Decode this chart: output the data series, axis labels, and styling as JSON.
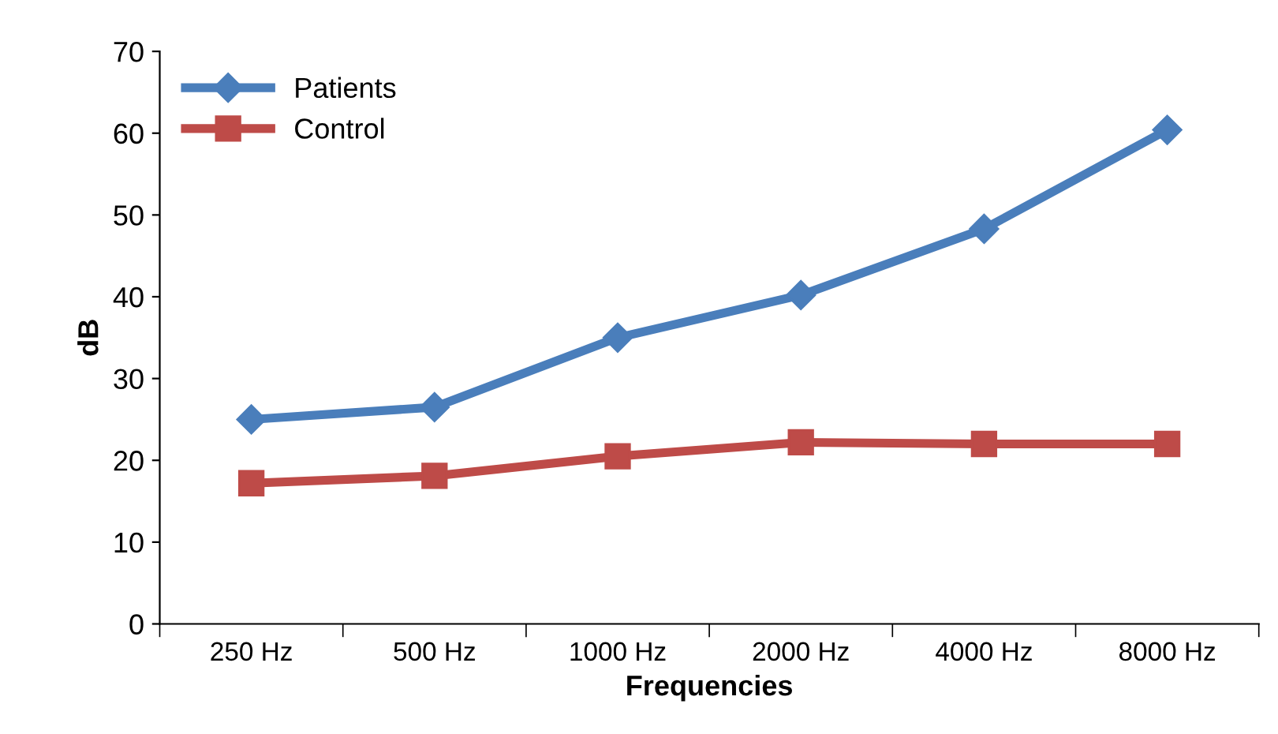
{
  "chart_data": {
    "type": "line",
    "xlabel": "Frequencies",
    "ylabel": "dB",
    "categories": [
      "250 Hz",
      "500 Hz",
      "1000 Hz",
      "2000 Hz",
      "4000 Hz",
      "8000 Hz"
    ],
    "series": [
      {
        "name": "Patients",
        "color": "#4a7ebb",
        "marker": "diamond",
        "values": [
          25,
          26.5,
          35,
          40.2,
          48.3,
          60.4
        ]
      },
      {
        "name": "Control",
        "color": "#be4b48",
        "marker": "square",
        "values": [
          17.2,
          18.1,
          20.5,
          22.2,
          22,
          22
        ]
      }
    ],
    "ylim": [
      0,
      70
    ],
    "yticks": [
      0,
      10,
      20,
      30,
      40,
      50,
      60,
      70
    ],
    "grid": false,
    "legend": "top left",
    "line_style": "solid"
  }
}
